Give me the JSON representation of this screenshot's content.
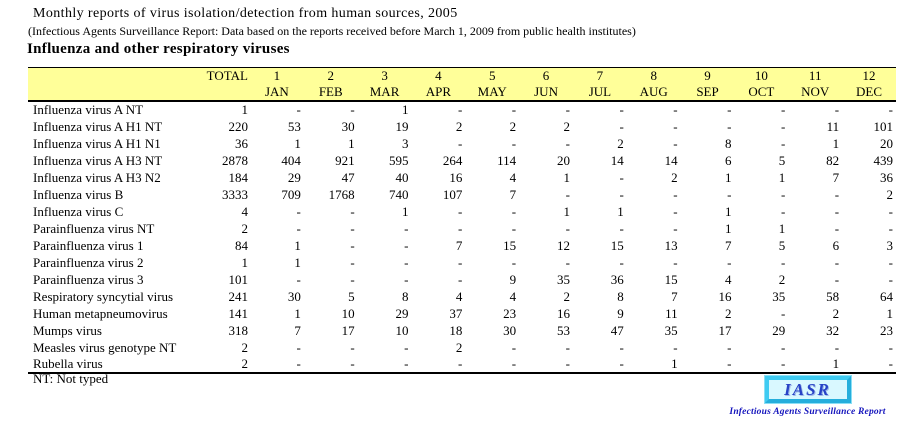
{
  "page": {
    "title": "Monthly reports of virus isolation/detection from human sources, 2005",
    "subtitle": "(Infectious Agents Surveillance Report: Data based on the reports received before March 1, 2009 from public health institutes)",
    "section_heading": "Influenza and other respiratory viruses",
    "footnote": "NT: Not typed"
  },
  "table": {
    "header_bg": "#FFFF99",
    "total_header": "TOTAL",
    "month_numbers": [
      "1",
      "2",
      "3",
      "4",
      "5",
      "6",
      "7",
      "8",
      "9",
      "10",
      "11",
      "12"
    ],
    "month_names": [
      "JAN",
      "FEB",
      "MAR",
      "APR",
      "MAY",
      "JUN",
      "JUL",
      "AUG",
      "SEP",
      "OCT",
      "NOV",
      "DEC"
    ],
    "rows": [
      {
        "label": "Influenza virus A NT",
        "total": "1",
        "values": [
          "-",
          "-",
          "1",
          "-",
          "-",
          "-",
          "-",
          "-",
          "-",
          "-",
          "-",
          "-"
        ]
      },
      {
        "label": "Influenza virus A H1 NT",
        "total": "220",
        "values": [
          "53",
          "30",
          "19",
          "2",
          "2",
          "2",
          "-",
          "-",
          "-",
          "-",
          "11",
          "101"
        ]
      },
      {
        "label": "Influenza virus A H1 N1",
        "total": "36",
        "values": [
          "1",
          "1",
          "3",
          "-",
          "-",
          "-",
          "2",
          "-",
          "8",
          "-",
          "1",
          "20"
        ]
      },
      {
        "label": "Influenza virus A H3 NT",
        "total": "2878",
        "values": [
          "404",
          "921",
          "595",
          "264",
          "114",
          "20",
          "14",
          "14",
          "6",
          "5",
          "82",
          "439"
        ]
      },
      {
        "label": "Influenza virus A H3 N2",
        "total": "184",
        "values": [
          "29",
          "47",
          "40",
          "16",
          "4",
          "1",
          "-",
          "2",
          "1",
          "1",
          "7",
          "36"
        ]
      },
      {
        "label": "Influenza virus B",
        "total": "3333",
        "values": [
          "709",
          "1768",
          "740",
          "107",
          "7",
          "-",
          "-",
          "-",
          "-",
          "-",
          "-",
          "2"
        ]
      },
      {
        "label": "Influenza virus C",
        "total": "4",
        "values": [
          "-",
          "-",
          "1",
          "-",
          "-",
          "1",
          "1",
          "-",
          "1",
          "-",
          "-",
          "-"
        ]
      },
      {
        "label": "Parainfluenza virus NT",
        "total": "2",
        "values": [
          "-",
          "-",
          "-",
          "-",
          "-",
          "-",
          "-",
          "-",
          "1",
          "1",
          "-",
          "-"
        ]
      },
      {
        "label": "Parainfluenza virus 1",
        "total": "84",
        "values": [
          "1",
          "-",
          "-",
          "7",
          "15",
          "12",
          "15",
          "13",
          "7",
          "5",
          "6",
          "3"
        ]
      },
      {
        "label": "Parainfluenza virus 2",
        "total": "1",
        "values": [
          "1",
          "-",
          "-",
          "-",
          "-",
          "-",
          "-",
          "-",
          "-",
          "-",
          "-",
          "-"
        ]
      },
      {
        "label": "Parainfluenza virus 3",
        "total": "101",
        "values": [
          "-",
          "-",
          "-",
          "-",
          "9",
          "35",
          "36",
          "15",
          "4",
          "2",
          "-",
          "-"
        ]
      },
      {
        "label": "Respiratory syncytial virus",
        "total": "241",
        "values": [
          "30",
          "5",
          "8",
          "4",
          "4",
          "2",
          "8",
          "7",
          "16",
          "35",
          "58",
          "64"
        ]
      },
      {
        "label": "Human metapneumovirus",
        "total": "141",
        "values": [
          "1",
          "10",
          "29",
          "37",
          "23",
          "16",
          "9",
          "11",
          "2",
          "-",
          "2",
          "1"
        ]
      },
      {
        "label": "Mumps virus",
        "total": "318",
        "values": [
          "7",
          "17",
          "10",
          "18",
          "30",
          "53",
          "47",
          "35",
          "17",
          "29",
          "32",
          "23"
        ]
      },
      {
        "label": "Measles virus genotype NT",
        "total": "2",
        "values": [
          "-",
          "-",
          "-",
          "2",
          "-",
          "-",
          "-",
          "-",
          "-",
          "-",
          "-",
          "-"
        ]
      },
      {
        "label": "Rubella virus",
        "total": "2",
        "values": [
          "-",
          "-",
          "-",
          "-",
          "-",
          "-",
          "-",
          "1",
          "-",
          "-",
          "1",
          "-"
        ]
      }
    ]
  },
  "logo": {
    "text": "IASR",
    "caption": "Infectious Agents Surveillance Report",
    "box_bg": "#D9F8FF",
    "border_color": "#3FCBF2",
    "text_color": "#2742C6",
    "caption_color": "#1515BD"
  }
}
